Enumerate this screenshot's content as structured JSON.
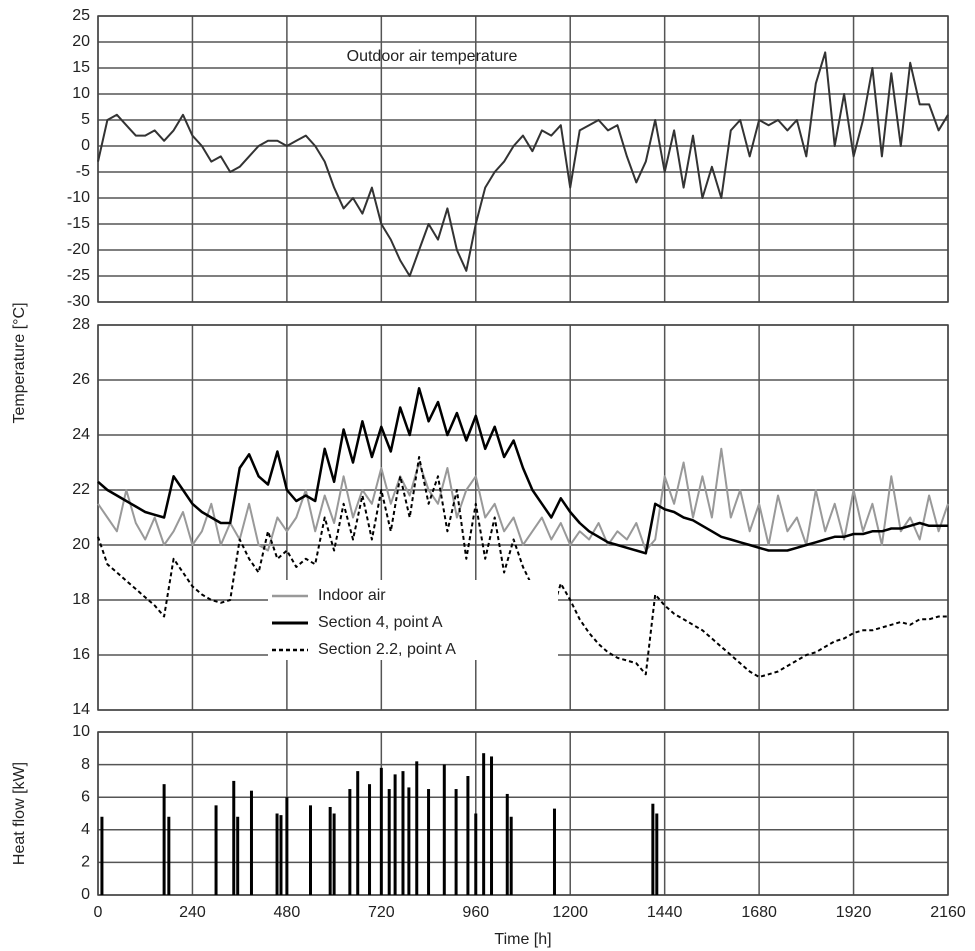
{
  "chart_data": [
    {
      "type": "line",
      "annotation": "Outdoor air temperature",
      "xlim": [
        0,
        2160
      ],
      "xticks": [
        0,
        240,
        480,
        720,
        960,
        1200,
        1440,
        1680,
        1920,
        2160
      ],
      "ylim": [
        -30,
        25
      ],
      "yticks": [
        -30,
        -25,
        -20,
        -15,
        -10,
        -5,
        0,
        5,
        10,
        15,
        20,
        25
      ],
      "grid": true,
      "x": [
        0,
        24,
        48,
        72,
        96,
        120,
        144,
        168,
        192,
        216,
        240,
        264,
        288,
        312,
        336,
        360,
        384,
        408,
        432,
        456,
        480,
        504,
        528,
        552,
        576,
        600,
        624,
        648,
        672,
        696,
        720,
        744,
        768,
        792,
        816,
        840,
        864,
        888,
        912,
        936,
        960,
        984,
        1008,
        1032,
        1056,
        1080,
        1104,
        1128,
        1152,
        1176,
        1200,
        1224,
        1248,
        1272,
        1296,
        1320,
        1344,
        1368,
        1392,
        1416,
        1440,
        1464,
        1488,
        1512,
        1536,
        1560,
        1584,
        1608,
        1632,
        1656,
        1680,
        1704,
        1728,
        1752,
        1776,
        1800,
        1824,
        1848,
        1872,
        1896,
        1920,
        1944,
        1968,
        1992,
        2016,
        2040,
        2064,
        2088,
        2112,
        2136,
        2160
      ],
      "series": [
        {
          "color": "#333333",
          "width": 2,
          "style": "solid",
          "values": [
            -3,
            5,
            6,
            4,
            2,
            2,
            3,
            1,
            3,
            6,
            2,
            0,
            -3,
            -2,
            -5,
            -4,
            -2,
            0,
            1,
            1,
            0,
            1,
            2,
            0,
            -3,
            -8,
            -12,
            -10,
            -13,
            -8,
            -15,
            -18,
            -22,
            -25,
            -20,
            -15,
            -18,
            -12,
            -20,
            -24,
            -15,
            -8,
            -5,
            -3,
            0,
            2,
            -1,
            3,
            2,
            4,
            -8,
            3,
            4,
            5,
            3,
            4,
            -2,
            -7,
            -3,
            5,
            -5,
            3,
            -8,
            2,
            -10,
            -4,
            -10,
            3,
            5,
            -2,
            5,
            4,
            5,
            3,
            5,
            -2,
            12,
            18,
            0,
            10,
            -2,
            5,
            15,
            -2,
            14,
            0,
            16,
            8,
            8,
            3,
            6
          ]
        }
      ]
    },
    {
      "type": "line",
      "ylabel": "Temperature [°C]",
      "legend": "lower-left",
      "xlim": [
        0,
        2160
      ],
      "xticks": [
        0,
        240,
        480,
        720,
        960,
        1200,
        1440,
        1680,
        1920,
        2160
      ],
      "ylim": [
        14,
        28
      ],
      "yticks": [
        14,
        16,
        18,
        20,
        22,
        24,
        26,
        28
      ],
      "grid": true,
      "x": [
        0,
        24,
        48,
        72,
        96,
        120,
        144,
        168,
        192,
        216,
        240,
        264,
        288,
        312,
        336,
        360,
        384,
        408,
        432,
        456,
        480,
        504,
        528,
        552,
        576,
        600,
        624,
        648,
        672,
        696,
        720,
        744,
        768,
        792,
        816,
        840,
        864,
        888,
        912,
        936,
        960,
        984,
        1008,
        1032,
        1056,
        1080,
        1104,
        1128,
        1152,
        1176,
        1200,
        1224,
        1248,
        1272,
        1296,
        1320,
        1344,
        1368,
        1392,
        1416,
        1440,
        1464,
        1488,
        1512,
        1536,
        1560,
        1584,
        1608,
        1632,
        1656,
        1680,
        1704,
        1728,
        1752,
        1776,
        1800,
        1824,
        1848,
        1872,
        1896,
        1920,
        1944,
        1968,
        1992,
        2016,
        2040,
        2064,
        2088,
        2112,
        2136,
        2160
      ],
      "series": [
        {
          "name": "Indoor air",
          "color": "#999999",
          "width": 2,
          "style": "solid",
          "values": [
            21.5,
            21,
            20.5,
            22,
            20.8,
            20.2,
            21,
            20,
            20.5,
            21.2,
            20,
            20.5,
            21.5,
            20,
            20.8,
            20.2,
            21.5,
            20,
            19.8,
            21,
            20.5,
            21,
            22,
            20.5,
            21.8,
            20.8,
            22.5,
            21,
            22,
            21.5,
            22.8,
            21.5,
            22.5,
            21.8,
            23,
            22,
            21.5,
            22.8,
            21,
            22,
            22.5,
            21,
            21.5,
            20.5,
            21,
            20,
            20.5,
            21,
            20.2,
            20.8,
            20,
            20.5,
            20.2,
            20.8,
            20,
            20.5,
            20.2,
            20.8,
            19.8,
            20.2,
            22.5,
            21.5,
            23,
            21,
            22.5,
            21,
            23.5,
            21,
            22,
            20.5,
            21.5,
            20,
            21.8,
            20.5,
            21,
            20,
            22,
            20.5,
            21.5,
            20.2,
            22,
            20.5,
            21.5,
            20,
            22.5,
            20.5,
            21,
            20.2,
            21.8,
            20.5,
            21.5
          ]
        },
        {
          "name": "Section 4, point A",
          "color": "#000000",
          "width": 2.5,
          "style": "solid",
          "values": [
            22.3,
            22,
            21.8,
            21.6,
            21.4,
            21.2,
            21.1,
            21,
            22.5,
            22,
            21.5,
            21.2,
            21,
            20.8,
            20.8,
            22.8,
            23.3,
            22.5,
            22.2,
            23.4,
            22,
            21.6,
            21.8,
            21.6,
            23.5,
            22.3,
            24.2,
            23,
            24.5,
            23.2,
            24.3,
            23.4,
            25,
            24,
            25.7,
            24.5,
            25.2,
            24,
            24.8,
            23.8,
            24.7,
            23.5,
            24.3,
            23.2,
            23.8,
            22.8,
            22,
            21.5,
            21,
            21.7,
            21.2,
            20.8,
            20.5,
            20.3,
            20.1,
            20,
            19.9,
            19.8,
            19.7,
            21.5,
            21.3,
            21.2,
            21,
            20.9,
            20.7,
            20.5,
            20.3,
            20.2,
            20.1,
            20,
            19.9,
            19.8,
            19.8,
            19.8,
            19.9,
            20,
            20.1,
            20.2,
            20.3,
            20.3,
            20.4,
            20.4,
            20.5,
            20.5,
            20.6,
            20.6,
            20.7,
            20.8,
            20.7,
            20.7,
            20.7
          ]
        },
        {
          "name": "Section 2.2, point A",
          "color": "#000000",
          "width": 2,
          "style": "dashed",
          "values": [
            20.3,
            19.3,
            19,
            18.7,
            18.4,
            18.1,
            17.8,
            17.4,
            19.5,
            19,
            18.5,
            18.2,
            18,
            17.9,
            18,
            20.2,
            19.5,
            19,
            20.5,
            19.5,
            19.8,
            19.2,
            19.5,
            19.3,
            21,
            19.8,
            21.5,
            20.2,
            21.8,
            20.2,
            22,
            20.5,
            22.5,
            21,
            23.2,
            21.5,
            22.5,
            20.5,
            22,
            19.5,
            21.5,
            19.5,
            21,
            19,
            20.2,
            19.2,
            18.5,
            18,
            17.5,
            18.6,
            18,
            17.3,
            16.8,
            16.4,
            16.1,
            15.9,
            15.8,
            15.7,
            15.3,
            18.2,
            17.8,
            17.5,
            17.3,
            17.1,
            16.9,
            16.6,
            16.3,
            16,
            15.7,
            15.4,
            15.2,
            15.3,
            15.4,
            15.6,
            15.8,
            16,
            16.1,
            16.3,
            16.5,
            16.6,
            16.8,
            16.9,
            16.9,
            17,
            17.1,
            17.2,
            17.1,
            17.3,
            17.3,
            17.4,
            17.4
          ]
        }
      ]
    },
    {
      "type": "spike",
      "ylabel": "Heat flow [kW]",
      "xlabel": "Time [h]",
      "color": "#000000",
      "xlim": [
        0,
        2160
      ],
      "xticks": [
        0,
        240,
        480,
        720,
        960,
        1200,
        1440,
        1680,
        1920,
        2160
      ],
      "ylim": [
        0,
        10
      ],
      "yticks": [
        0,
        2,
        4,
        6,
        8,
        10
      ],
      "grid": true,
      "x": [
        10,
        168,
        180,
        300,
        345,
        355,
        390,
        455,
        465,
        480,
        540,
        590,
        600,
        640,
        660,
        690,
        720,
        740,
        755,
        775,
        790,
        810,
        840,
        880,
        910,
        940,
        960,
        980,
        1000,
        1040,
        1050,
        1160,
        1410,
        1420
      ],
      "values": [
        4.8,
        6.8,
        4.8,
        5.5,
        7,
        4.8,
        6.4,
        5,
        4.9,
        6,
        5.5,
        5.4,
        5,
        6.5,
        7.6,
        6.8,
        7.8,
        6.5,
        7.4,
        7.6,
        6.6,
        8.2,
        6.5,
        8,
        6.5,
        7.3,
        5,
        8.7,
        8.5,
        6.2,
        4.8,
        5.3,
        5.6,
        5
      ]
    }
  ]
}
